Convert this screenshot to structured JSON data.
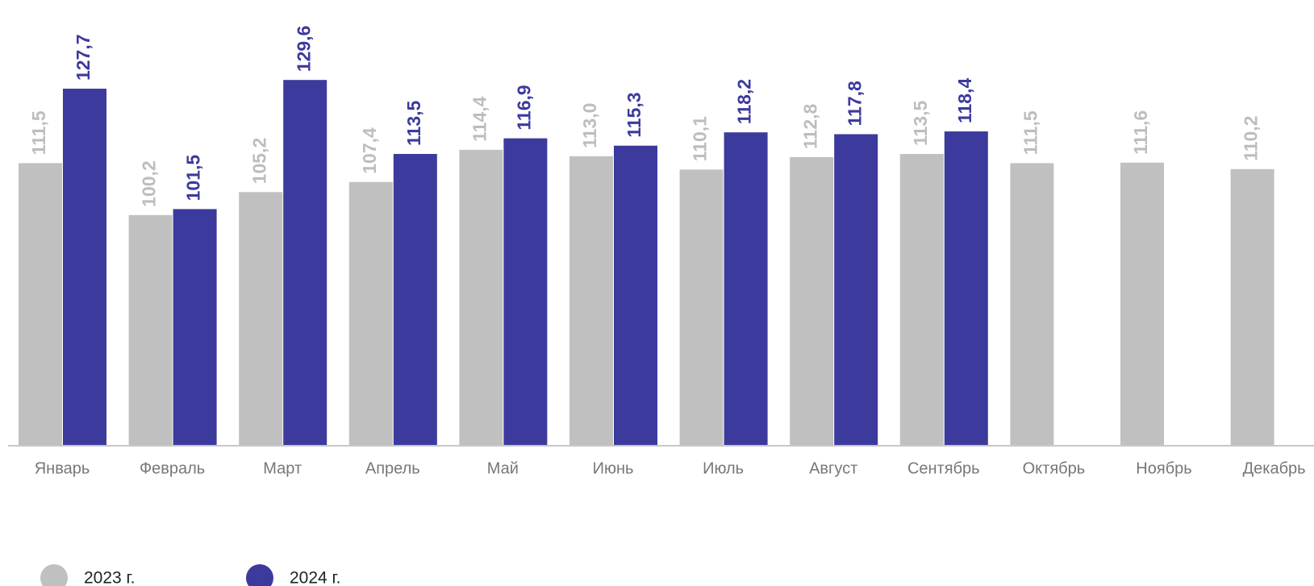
{
  "chart_data": {
    "type": "bar",
    "categories": [
      "Январь",
      "Февраль",
      "Март",
      "Апрель",
      "Май",
      "Июнь",
      "Июль",
      "Август",
      "Сентябрь",
      "Октябрь",
      "Ноябрь",
      "Декабрь"
    ],
    "series": [
      {
        "name": "2023 г.",
        "color": "#c0c0c0",
        "label_color": "#bdbdbd",
        "values": [
          111.5,
          100.2,
          105.2,
          107.4,
          114.4,
          113.0,
          110.1,
          112.8,
          113.5,
          111.5,
          111.6,
          110.2
        ],
        "value_labels": [
          "111,5",
          "100,2",
          "105,2",
          "107,4",
          "114,4",
          "113,0",
          "110,1",
          "112,8",
          "113,5",
          "111,5",
          "111,6",
          "110,2"
        ]
      },
      {
        "name": "2024 г.",
        "color": "#3c3a9c",
        "label_color": "#3c3a9c",
        "values": [
          127.7,
          101.5,
          129.6,
          113.5,
          116.9,
          115.3,
          118.2,
          117.8,
          118.4,
          null,
          null,
          null
        ],
        "value_labels": [
          "127,7",
          "101,5",
          "129,6",
          "113,5",
          "116,9",
          "115,3",
          "118,2",
          "117,8",
          "118,4",
          null,
          null,
          null
        ]
      }
    ],
    "ylim": [
      50,
      147
    ],
    "grid": false,
    "legend": "bottom-left"
  }
}
